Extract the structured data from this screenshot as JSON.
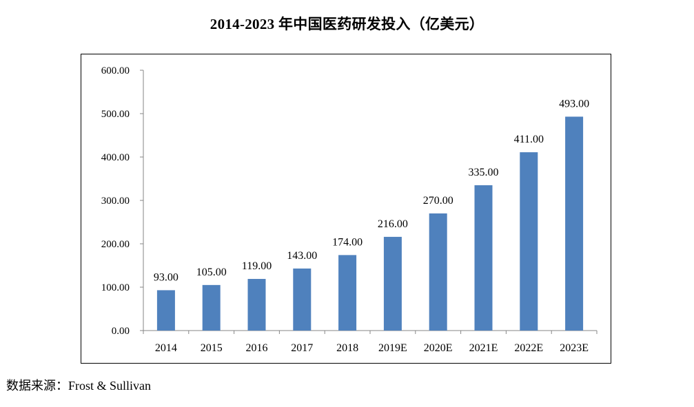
{
  "chart_data": {
    "type": "bar",
    "title": "2014-2023 年中国医药研发投入（亿美元）",
    "categories": [
      "2014",
      "2015",
      "2016",
      "2017",
      "2018",
      "2019E",
      "2020E",
      "2021E",
      "2022E",
      "2023E"
    ],
    "values": [
      93,
      105,
      119,
      143,
      174,
      216,
      270,
      335,
      411,
      493
    ],
    "value_labels": [
      "93.00",
      "105.00",
      "119.00",
      "143.00",
      "174.00",
      "216.00",
      "270.00",
      "335.00",
      "411.00",
      "493.00"
    ],
    "y_ticks": [
      "0.00",
      "100.00",
      "200.00",
      "300.00",
      "400.00",
      "500.00",
      "600.00"
    ],
    "ylim": [
      0,
      600
    ],
    "xlabel": "",
    "ylabel": "",
    "grid": false,
    "legend": "none",
    "bar_color": "#4f81bd"
  },
  "source_note": "数据来源：Frost & Sullivan"
}
